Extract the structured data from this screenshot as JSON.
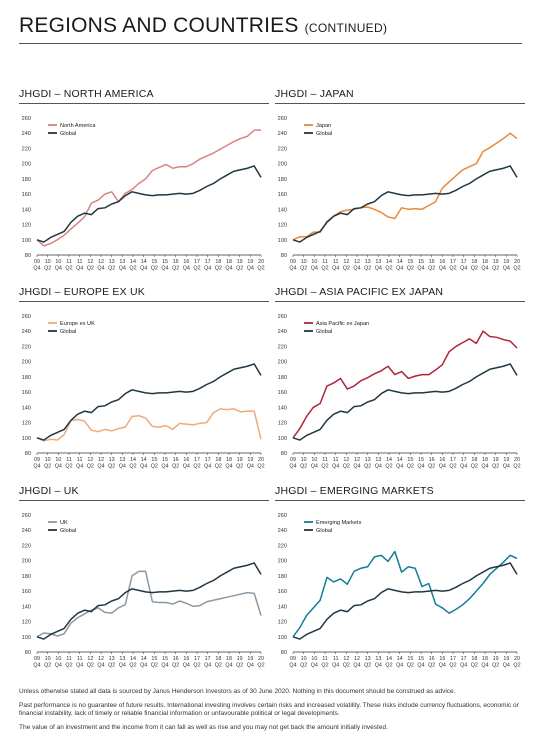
{
  "page": {
    "title_main": "REGIONS AND COUNTRIES",
    "title_sub": "(CONTINUED)"
  },
  "footer": {
    "line1": "Unless otherwise stated all data is sourced by Janus Henderson Investors as of 30 June 2020. Nothing in this document should be construed as advice.",
    "line2": "Past performance is no guarantee of future results. International investing involves certain risks and increased volatility. These risks include currency fluctuations, economic or financial instability, lack of timely or reliable financial information or unfavourable political or legal developments.",
    "line3": "The value of an investment and the income from it can fall as well as rise and you may not get back the amount initially invested."
  },
  "axis": {
    "y_ticks": [
      "260",
      "240",
      "220",
      "200",
      "180",
      "160",
      "140",
      "120",
      "100",
      "80"
    ],
    "x_top": [
      "09",
      "10",
      "10",
      "11",
      "11",
      "12",
      "12",
      "13",
      "13",
      "14",
      "14",
      "15",
      "15",
      "16",
      "16",
      "17",
      "17",
      "18",
      "18",
      "19",
      "19",
      "20"
    ],
    "x_bottom": [
      "Q4",
      "Q2",
      "Q4",
      "Q2",
      "Q4",
      "Q2",
      "Q4",
      "Q2",
      "Q4",
      "Q2",
      "Q4",
      "Q2",
      "Q4",
      "Q2",
      "Q4",
      "Q2",
      "Q4",
      "Q2",
      "Q4",
      "Q2",
      "Q4",
      "Q2"
    ]
  },
  "colors": {
    "global": "#223642",
    "north_america": "#d98480",
    "japan": "#e8893a",
    "europe_ex_uk": "#f0aa76",
    "asia_pacific_ex_japan": "#b0243a",
    "uk": "#8c99a3",
    "emerging_markets": "#127e96",
    "axis": "#333333"
  },
  "chart_data": [
    {
      "type": "line",
      "title": "JHGDI – NORTH AMERICA",
      "ylim": [
        80,
        260
      ],
      "yticks": [
        80,
        100,
        120,
        140,
        160,
        180,
        200,
        220,
        240,
        260
      ],
      "x_count": 22,
      "series": [
        {
          "name": "North America",
          "color": "#d98480",
          "values": [
            100,
            92,
            95,
            100,
            106,
            114,
            122,
            130,
            148,
            152,
            160,
            163,
            150,
            161,
            166,
            174,
            180,
            191,
            195,
            199,
            194,
            196,
            196,
            200,
            206,
            210,
            214,
            219,
            224,
            229,
            233,
            236,
            244,
            244
          ]
        },
        {
          "name": "Global",
          "color": "#223642",
          "values": [
            100,
            97,
            103,
            107,
            111,
            123,
            131,
            135,
            133,
            141,
            142,
            147,
            150,
            158,
            163,
            161,
            159,
            158,
            159,
            159,
            160,
            161,
            160,
            161,
            165,
            170,
            174,
            180,
            185,
            190,
            192,
            194,
            197,
            182
          ]
        }
      ]
    },
    {
      "type": "line",
      "title": "JHGDI – JAPAN",
      "ylim": [
        80,
        260
      ],
      "yticks": [
        80,
        100,
        120,
        140,
        160,
        180,
        200,
        220,
        240,
        260
      ],
      "x_count": 22,
      "series": [
        {
          "name": "Japan",
          "color": "#e8893a",
          "values": [
            100,
            104,
            104,
            110,
            110,
            124,
            131,
            137,
            139,
            140,
            142,
            143,
            140,
            136,
            130,
            128,
            142,
            140,
            141,
            140,
            145,
            150,
            168,
            176,
            184,
            192,
            196,
            200,
            216,
            221,
            227,
            233,
            240,
            233
          ]
        },
        {
          "name": "Global",
          "color": "#223642",
          "values": [
            100,
            97,
            103,
            107,
            111,
            123,
            131,
            135,
            133,
            141,
            142,
            147,
            150,
            158,
            163,
            161,
            159,
            158,
            159,
            159,
            160,
            161,
            160,
            161,
            165,
            170,
            174,
            180,
            185,
            190,
            192,
            194,
            197,
            182
          ]
        }
      ]
    },
    {
      "type": "line",
      "title": "JHGDI – EUROPE EX UK",
      "ylim": [
        80,
        260
      ],
      "yticks": [
        80,
        100,
        120,
        140,
        160,
        180,
        200,
        220,
        240,
        260
      ],
      "x_count": 22,
      "series": [
        {
          "name": "Europe ex UK",
          "color": "#f0aa76",
          "values": [
            100,
            96,
            98,
            97,
            104,
            123,
            124,
            122,
            110,
            108,
            111,
            109,
            112,
            114,
            128,
            129,
            126,
            115,
            114,
            116,
            111,
            119,
            118,
            117,
            119,
            120,
            133,
            138,
            137,
            138,
            134,
            135,
            135,
            98
          ]
        },
        {
          "name": "Global",
          "color": "#223642",
          "values": [
            100,
            97,
            103,
            107,
            111,
            123,
            131,
            135,
            133,
            141,
            142,
            147,
            150,
            158,
            163,
            161,
            159,
            158,
            159,
            159,
            160,
            161,
            160,
            161,
            165,
            170,
            174,
            180,
            185,
            190,
            192,
            194,
            197,
            182
          ]
        }
      ]
    },
    {
      "type": "line",
      "title": "JHGDI – ASIA PACIFIC EX JAPAN",
      "ylim": [
        80,
        260
      ],
      "yticks": [
        80,
        100,
        120,
        140,
        160,
        180,
        200,
        220,
        240,
        260
      ],
      "x_count": 22,
      "series": [
        {
          "name": "Asia Pacific ex Japan",
          "color": "#b0243a",
          "values": [
            100,
            112,
            128,
            140,
            145,
            168,
            172,
            178,
            164,
            168,
            175,
            179,
            184,
            188,
            194,
            183,
            187,
            178,
            181,
            183,
            183,
            189,
            196,
            213,
            220,
            225,
            230,
            224,
            240,
            233,
            232,
            229,
            227,
            218
          ]
        },
        {
          "name": "Global",
          "color": "#223642",
          "values": [
            100,
            97,
            103,
            107,
            111,
            123,
            131,
            135,
            133,
            141,
            142,
            147,
            150,
            158,
            163,
            161,
            159,
            158,
            159,
            159,
            160,
            161,
            160,
            161,
            165,
            170,
            174,
            180,
            185,
            190,
            192,
            194,
            197,
            182
          ]
        }
      ]
    },
    {
      "type": "line",
      "title": "JHGDI – UK",
      "ylim": [
        80,
        260
      ],
      "yticks": [
        80,
        100,
        120,
        140,
        160,
        180,
        200,
        220,
        240,
        260
      ],
      "x_count": 22,
      "series": [
        {
          "name": "UK",
          "color": "#8c99a3",
          "values": [
            100,
            105,
            104,
            101,
            104,
            118,
            125,
            130,
            135,
            138,
            132,
            131,
            138,
            142,
            180,
            186,
            186,
            146,
            145,
            145,
            143,
            147,
            144,
            140,
            141,
            146,
            148,
            150,
            152,
            154,
            156,
            158,
            157,
            128
          ]
        },
        {
          "name": "Global",
          "color": "#223642",
          "values": [
            100,
            97,
            103,
            107,
            111,
            123,
            131,
            135,
            133,
            141,
            142,
            147,
            150,
            158,
            163,
            161,
            159,
            158,
            159,
            159,
            160,
            161,
            160,
            161,
            165,
            170,
            174,
            180,
            185,
            190,
            192,
            194,
            197,
            182
          ]
        }
      ]
    },
    {
      "type": "line",
      "title": "JHGDI – EMERGING MARKETS",
      "ylim": [
        80,
        260
      ],
      "yticks": [
        80,
        100,
        120,
        140,
        160,
        180,
        200,
        220,
        240,
        260
      ],
      "x_count": 22,
      "series": [
        {
          "name": "Emerging Markets",
          "color": "#127e96",
          "values": [
            100,
            112,
            128,
            138,
            148,
            178,
            172,
            176,
            169,
            186,
            190,
            192,
            205,
            207,
            199,
            212,
            185,
            192,
            190,
            166,
            170,
            143,
            138,
            131,
            136,
            142,
            150,
            160,
            170,
            182,
            190,
            198,
            207,
            203
          ]
        },
        {
          "name": "Global",
          "color": "#223642",
          "values": [
            100,
            97,
            103,
            107,
            111,
            123,
            131,
            135,
            133,
            141,
            142,
            147,
            150,
            158,
            163,
            161,
            159,
            158,
            159,
            159,
            160,
            161,
            160,
            161,
            165,
            170,
            174,
            180,
            185,
            190,
            192,
            194,
            197,
            182
          ]
        }
      ]
    }
  ]
}
